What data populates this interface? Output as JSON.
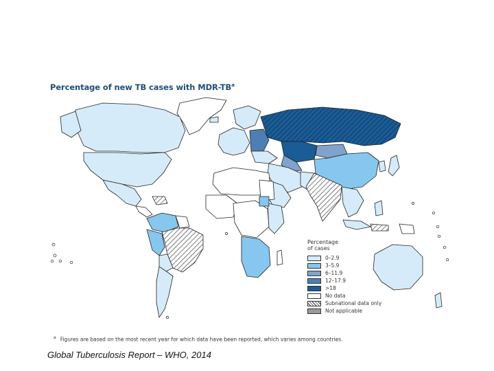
{
  "map": {
    "title": "Percentage of new TB cases with MDR-TB",
    "title_superscript": "a",
    "footnote_marker": "a",
    "footnote": "Figures are based on the most recent year for which data have been reported, which varies among countries."
  },
  "legend": {
    "title": "Percentage\nof cases",
    "items": [
      {
        "label": "0–2.9",
        "color": "#d6ebf9",
        "pattern": "none"
      },
      {
        "label": "3–5.9",
        "color": "#87c6ee",
        "pattern": "none"
      },
      {
        "label": "6–11.9",
        "color": "#7fa3cc",
        "pattern": "none"
      },
      {
        "label": "12–17.9",
        "color": "#4d7fb4",
        "pattern": "none"
      },
      {
        "label": ">18",
        "color": "#1a5c96",
        "pattern": "none"
      },
      {
        "label": "No data",
        "color": "#ffffff",
        "pattern": "none"
      },
      {
        "label": "Subnational data only",
        "color": "#ffffff",
        "pattern": "hatch"
      },
      {
        "label": "Not applicable",
        "color": "#9a9a9a",
        "pattern": "none"
      }
    ]
  },
  "source": "Global Tuberculosis Report – WHO, 2014",
  "colors": {
    "ocean": "#ffffff",
    "outline": "#222222",
    "title": "#1f4e79"
  }
}
